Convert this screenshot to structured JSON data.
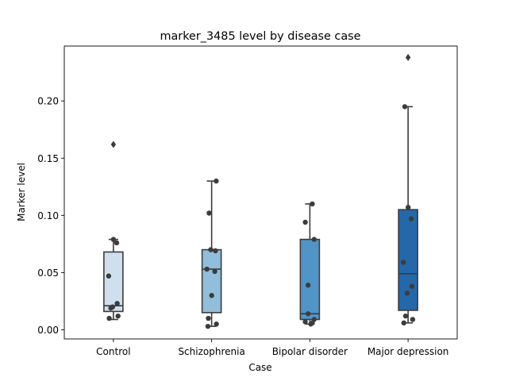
{
  "chart_data": {
    "type": "box",
    "title": "marker_3485 level by disease case",
    "xlabel": "Case",
    "ylabel": "Marker level",
    "ylim": [
      -0.008,
      0.248
    ],
    "yticks": [
      0.0,
      0.05,
      0.1,
      0.15,
      0.2
    ],
    "ytick_labels": [
      "0.00",
      "0.05",
      "0.10",
      "0.15",
      "0.20"
    ],
    "grid": false,
    "categories": [
      "Control",
      "Schizophrenia",
      "Bipolar disorder",
      "Major depression"
    ],
    "colors": [
      "#cfdff0",
      "#92bedc",
      "#5195c7",
      "#2468a9"
    ],
    "boxes": [
      {
        "q1": 0.016,
        "median": 0.021,
        "q3": 0.068,
        "whislo": 0.009,
        "whishi": 0.079,
        "fliers": [
          0.162
        ]
      },
      {
        "q1": 0.015,
        "median": 0.053,
        "q3": 0.07,
        "whislo": 0.003,
        "whishi": 0.13,
        "fliers": []
      },
      {
        "q1": 0.009,
        "median": 0.014,
        "q3": 0.079,
        "whislo": 0.005,
        "whishi": 0.11,
        "fliers": []
      },
      {
        "q1": 0.017,
        "median": 0.049,
        "q3": 0.105,
        "whislo": 0.006,
        "whishi": 0.195,
        "fliers": [
          0.238
        ]
      }
    ],
    "points": [
      [
        0.079,
        0.076,
        0.047,
        0.023,
        0.02,
        0.019,
        0.012,
        0.01
      ],
      [
        0.13,
        0.102,
        0.07,
        0.069,
        0.053,
        0.051,
        0.03,
        0.01,
        0.005,
        0.003
      ],
      [
        0.11,
        0.094,
        0.079,
        0.039,
        0.014,
        0.009,
        0.007,
        0.006,
        0.005
      ],
      [
        0.195,
        0.107,
        0.097,
        0.059,
        0.038,
        0.032,
        0.012,
        0.009,
        0.006
      ]
    ]
  }
}
